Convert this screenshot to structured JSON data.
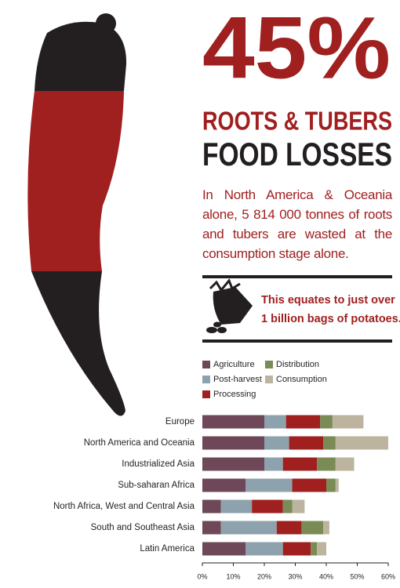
{
  "header": {
    "big_stat": "45%",
    "subtitle": "ROOTS & TUBERS",
    "title": "FOOD LOSSES",
    "paragraph": "In North America & Oceania alone, 5 814 000 tonnes of roots and tubers are wasted at the consumption stage alone."
  },
  "callout": {
    "lines": [
      "This equates to just over",
      "1 billion bags of potatoes."
    ]
  },
  "chart_data": {
    "type": "stacked-barh",
    "categories": [
      "Europe",
      "North America and Oceania",
      "Industrialized Asia",
      "Sub-saharan Africa",
      "North Africa, West and Central Asia",
      "South and Southeast Asia",
      "Latin America"
    ],
    "series": [
      {
        "name": "Agriculture",
        "color": "#6e4858",
        "values": [
          20,
          20,
          20,
          14,
          6,
          6,
          14
        ]
      },
      {
        "name": "Post-harvest",
        "color": "#8ea2ad",
        "values": [
          7,
          8,
          6,
          15,
          10,
          18,
          12
        ]
      },
      {
        "name": "Processing",
        "color": "#a01f1f",
        "values": [
          11,
          11,
          11,
          11,
          10,
          8,
          9
        ]
      },
      {
        "name": "Distribution",
        "color": "#7a8b55",
        "values": [
          4,
          4,
          6,
          3,
          3,
          7,
          2
        ]
      },
      {
        "name": "Consumption",
        "color": "#bdb49f",
        "values": [
          10,
          17,
          6,
          1,
          4,
          2,
          3
        ]
      }
    ],
    "xlim": [
      0,
      60
    ],
    "xticks": [
      {
        "value": 0,
        "label": "0%"
      },
      {
        "value": 10,
        "label": "10%"
      },
      {
        "value": 20,
        "label": "20%"
      },
      {
        "value": 30,
        "label": "30%"
      },
      {
        "value": 40,
        "label": "40%"
      },
      {
        "value": 50,
        "label": "50%"
      },
      {
        "value": 60,
        "label": "60%"
      }
    ]
  }
}
